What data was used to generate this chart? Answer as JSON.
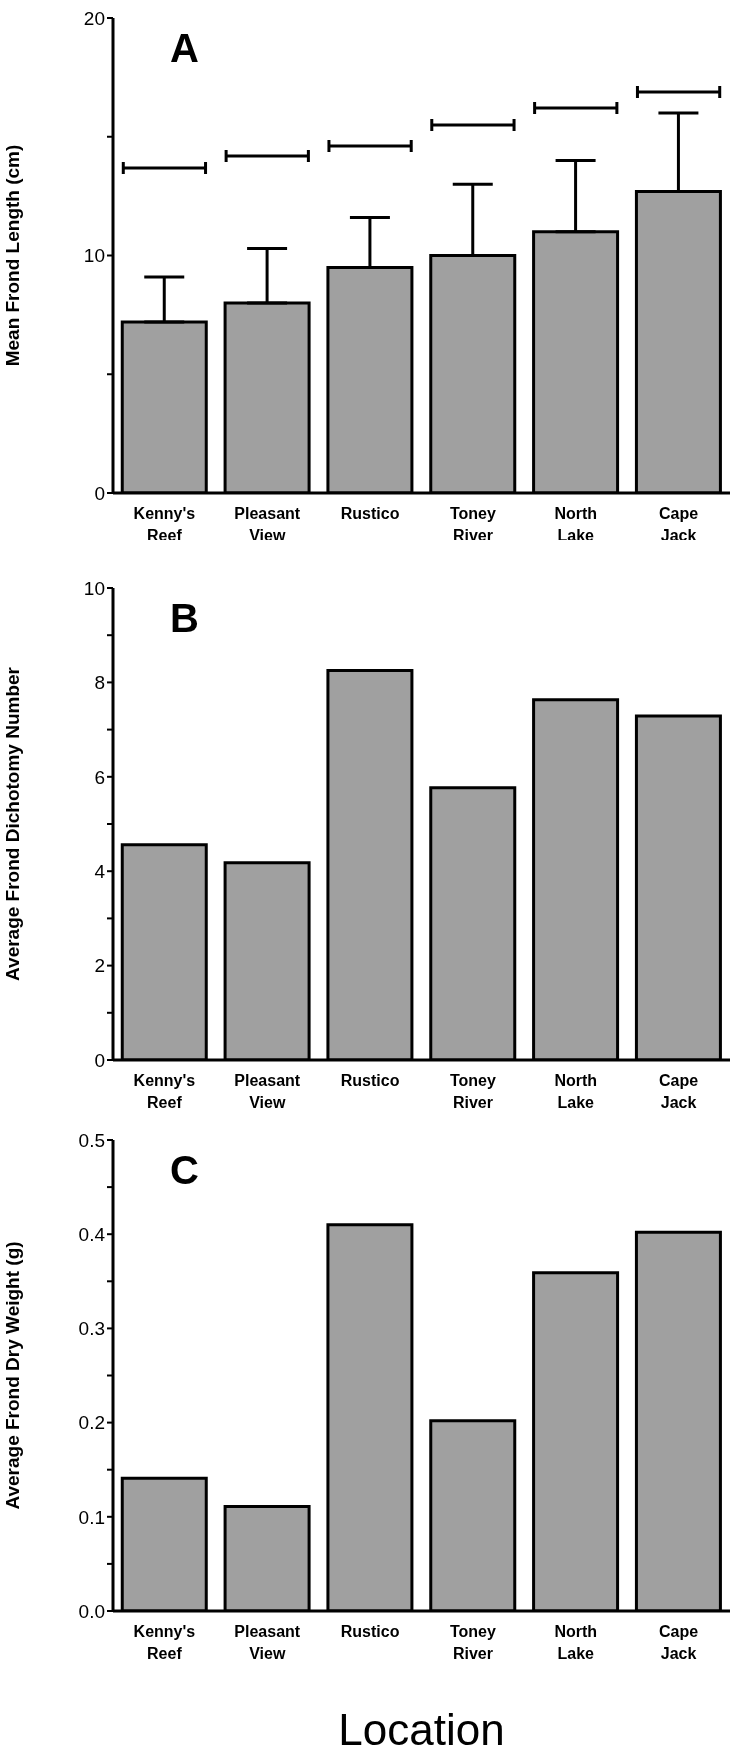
{
  "chart_data": [
    {
      "type": "bar",
      "title": "A",
      "ylabel": "Mean Frond Length (cm)",
      "categories": [
        "Kenny's Reef",
        "Pleasant View",
        "Rustico",
        "Toney River",
        "North Lake",
        "Cape Jack"
      ],
      "series": [
        {
          "color": "#a0a0a0",
          "values": [
            7.2,
            8.0,
            9.5,
            10.0,
            11.0,
            12.7
          ],
          "errors": [
            [
              7.2,
              9.1
            ],
            [
              8.0,
              10.3
            ],
            [
              9.5,
              11.6
            ],
            [
              10.0,
              13.0
            ],
            [
              11.0,
              14.0
            ],
            [
              12.7,
              16.0
            ]
          ]
        }
      ],
      "ylim": [
        0,
        20
      ],
      "yticks": [
        0,
        {
          "value": 5,
          "label": null
        },
        10,
        {
          "value": 15,
          "label": null
        },
        20
      ]
    },
    {
      "type": "bar",
      "title": "B",
      "ylabel": "Average Frond Dichotomy Number",
      "categories": [
        "Kenny's Reef",
        "Pleasant View",
        "Rustico",
        "Toney River",
        "North Lake",
        "Cape Jack"
      ],
      "series": [
        {
          "color": "#a0a0a0",
          "values": [
            4.56,
            4.18,
            8.25,
            5.77,
            7.63,
            7.29
          ]
        }
      ],
      "ylim": [
        0,
        10
      ],
      "yticks": [
        0,
        {
          "value": 1,
          "label": null
        },
        2,
        {
          "value": 3,
          "label": null
        },
        4,
        {
          "value": 5,
          "label": null
        },
        6,
        {
          "value": 7,
          "label": null
        },
        8,
        {
          "value": 9,
          "label": null
        },
        10
      ]
    },
    {
      "type": "bar",
      "title": "C",
      "ylabel": "Average Frond Dry Weight (g)",
      "xlabel": "Location",
      "categories": [
        "Kenny's Reef",
        "Pleasant View",
        "Rustico",
        "Toney River",
        "North Lake",
        "Cape Jack"
      ],
      "series": [
        {
          "color": "#a0a0a0",
          "values": [
            0.141,
            0.111,
            0.41,
            0.202,
            0.359,
            0.402
          ]
        }
      ],
      "ylim": [
        0,
        0.5
      ],
      "yticks": [
        {
          "value": 0,
          "label": "0.0"
        },
        {
          "value": 0.05,
          "label": null
        },
        0.1,
        {
          "value": 0.15,
          "label": null
        },
        0.2,
        {
          "value": 0.25,
          "label": null
        },
        0.3,
        {
          "value": 0.35,
          "label": null
        },
        0.4,
        {
          "value": 0.45,
          "label": null
        },
        0.5
      ]
    }
  ]
}
